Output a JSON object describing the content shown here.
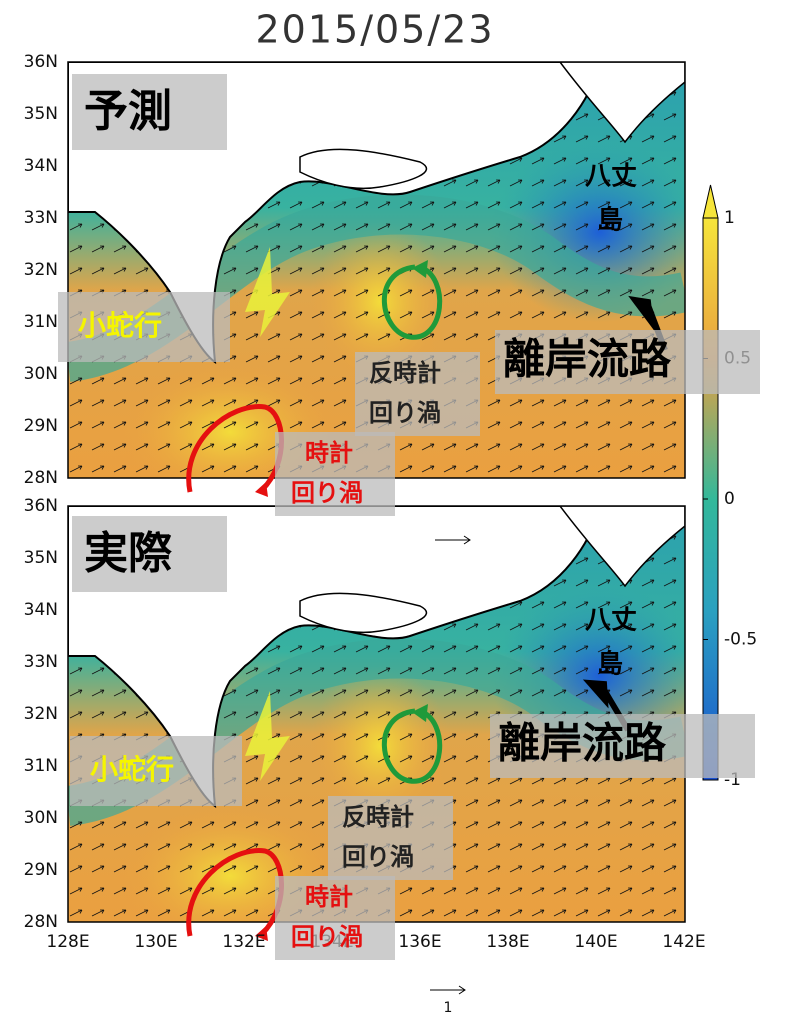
{
  "title": "2015/05/23",
  "lat_labels": [
    "36N",
    "35N",
    "34N",
    "33N",
    "32N",
    "31N",
    "30N",
    "29N",
    "28N"
  ],
  "lon_labels": [
    "128E",
    "130E",
    "132E",
    "134E",
    "136E",
    "138E",
    "140E",
    "142E"
  ],
  "colorbar": {
    "ticks": [
      {
        "value": 1,
        "label": "1"
      },
      {
        "value": 0.5,
        "label": "0.5"
      },
      {
        "value": 0,
        "label": "0"
      },
      {
        "value": -0.5,
        "label": "-0.5"
      },
      {
        "value": -1,
        "label": "-1"
      }
    ],
    "range": [
      -1,
      1
    ]
  },
  "vector_scale": "1",
  "panels": [
    {
      "label": "予測",
      "meander": "小蛇行",
      "ccw_eddy": [
        "反時計",
        "回り渦"
      ],
      "cw_eddy": [
        "時計",
        "回り渦"
      ],
      "island": [
        "八丈",
        "島"
      ],
      "offshore_path": "離岸流路"
    },
    {
      "label": "実際",
      "meander": "小蛇行",
      "ccw_eddy": [
        "反時計",
        "回り渦"
      ],
      "cw_eddy": [
        "時計",
        "回り渦"
      ],
      "island": [
        "八丈",
        "島"
      ],
      "offshore_path": "離岸流路"
    }
  ]
}
